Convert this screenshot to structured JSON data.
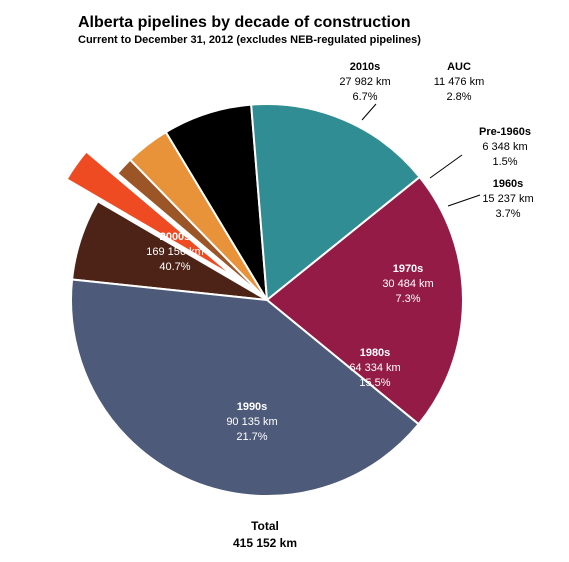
{
  "chart_data": {
    "type": "pie",
    "title": "Alberta pipelines by decade of construction",
    "subtitle": "Current to December 31, 2012 (excludes NEB-regulated pipelines)",
    "unit": "km",
    "slices": [
      {
        "label": "2010s",
        "value": 27982,
        "value_text": "27 982 km",
        "percent": "6.7%",
        "color": "#4e2317"
      },
      {
        "label": "AUC",
        "value": 11476,
        "value_text": "11 476 km",
        "percent": "2.8%",
        "color": "#ee4b23",
        "exploded": true
      },
      {
        "label": "Pre-1960s",
        "value": 6348,
        "value_text": "6 348 km",
        "percent": "1.5%",
        "color": "#9b5526"
      },
      {
        "label": "1960s",
        "value": 15237,
        "value_text": "15 237 km",
        "percent": "3.7%",
        "color": "#e8923a"
      },
      {
        "label": "1970s",
        "value": 30484,
        "value_text": "30 484 km",
        "percent": "7.3%",
        "color": "#000000"
      },
      {
        "label": "1980s",
        "value": 64334,
        "value_text": "64 334 km",
        "percent": "15.5%",
        "color": "#2f8d93"
      },
      {
        "label": "1990s",
        "value": 90135,
        "value_text": "90 135 km",
        "percent": "21.7%",
        "color": "#951b47"
      },
      {
        "label": "2000s",
        "value": 169156,
        "value_text": "169 156 km",
        "percent": "40.7%",
        "color": "#4d5a79"
      }
    ],
    "total_label": "Total",
    "total_value": "415 152 km"
  }
}
